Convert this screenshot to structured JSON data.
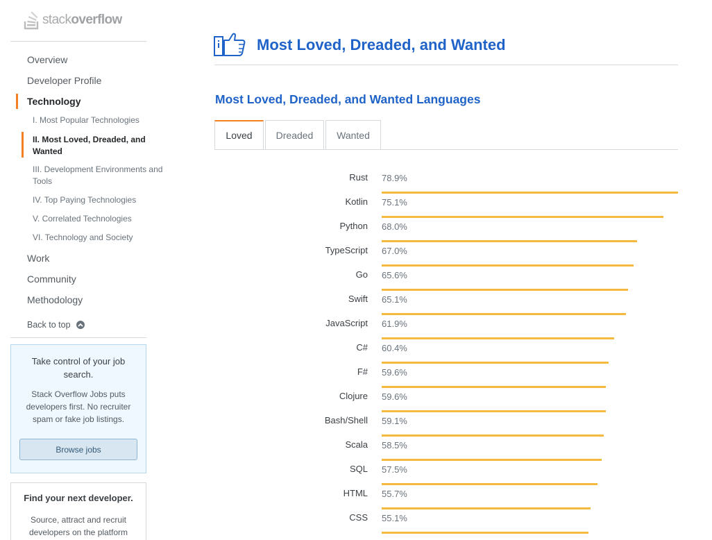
{
  "logo": {
    "prefix": "stack",
    "suffix": "overflow"
  },
  "sidebar": {
    "nav": [
      {
        "label": "Overview"
      },
      {
        "label": "Developer Profile"
      },
      {
        "label": "Technology"
      },
      {
        "label": "Work"
      },
      {
        "label": "Community"
      },
      {
        "label": "Methodology"
      }
    ],
    "sub_items": [
      {
        "label": "I. Most Popular Technologies"
      },
      {
        "label": "II. Most Loved, Dreaded, and Wanted"
      },
      {
        "label": "III. Development Environments and Tools"
      },
      {
        "label": "IV. Top Paying Technologies"
      },
      {
        "label": "V. Correlated Technologies"
      },
      {
        "label": "VI. Technology and Society"
      }
    ],
    "back_to_top": "Back to top",
    "job_box": {
      "title": "Take control of your job search.",
      "description": "Stack Overflow Jobs puts developers first. No recruiter spam or fake job listings.",
      "button": "Browse jobs"
    },
    "dev_box": {
      "title": "Find your next developer.",
      "description": "Source, attract and recruit developers on the platform"
    }
  },
  "main": {
    "title": "Most Loved, Dreaded, and Wanted",
    "section_title": "Most Loved, Dreaded, and Wanted Languages",
    "tabs": [
      {
        "label": "Loved"
      },
      {
        "label": "Dreaded"
      },
      {
        "label": "Wanted"
      }
    ],
    "active_tab": "Loved"
  },
  "colors": {
    "accent": "#f48024",
    "title_blue": "#1f63c8",
    "bar": "#f4b93f"
  },
  "icons": {
    "header": "thumbs-up-icon",
    "back_to_top": "chevron-up-icon",
    "logo": "stack-icon"
  },
  "chart_data": {
    "type": "bar",
    "orientation": "horizontal",
    "categories": [
      "Rust",
      "Kotlin",
      "Python",
      "TypeScript",
      "Go",
      "Swift",
      "JavaScript",
      "C#",
      "F#",
      "Clojure",
      "Bash/Shell",
      "Scala",
      "SQL",
      "HTML",
      "CSS"
    ],
    "values": [
      78.9,
      75.1,
      68.0,
      67.0,
      65.6,
      65.1,
      61.9,
      60.4,
      59.6,
      59.6,
      59.1,
      58.5,
      57.5,
      55.7,
      55.1
    ],
    "value_labels": [
      "78.9%",
      "75.1%",
      "68.0%",
      "67.0%",
      "65.6%",
      "65.1%",
      "61.9%",
      "60.4%",
      "59.6%",
      "59.6%",
      "59.1%",
      "58.5%",
      "57.5%",
      "55.7%",
      "55.1%"
    ],
    "unit": "%"
  }
}
